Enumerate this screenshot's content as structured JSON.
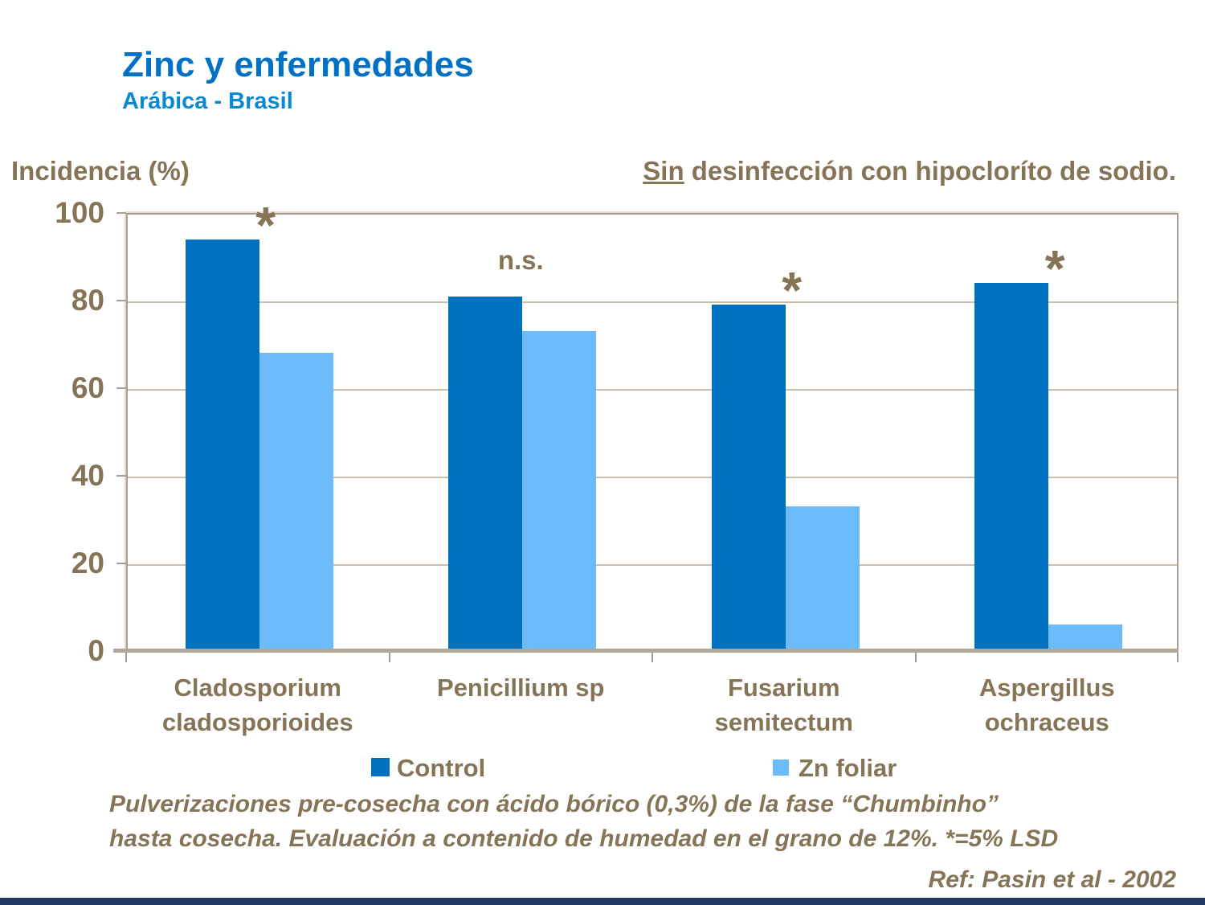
{
  "header": {
    "title": "Zinc y enfermedades",
    "subtitle": "Arábica - Brasil"
  },
  "axis": {
    "y_title": "Incidencia (%)"
  },
  "note": {
    "underlined": "Sin",
    "rest": " desinfección con hipocloríto de sodio."
  },
  "chart_data": {
    "type": "bar",
    "categories": [
      "Cladosporium cladosporioides",
      "Penicillium sp",
      "Fusarium semitectum",
      "Aspergillus ochraceus"
    ],
    "series": [
      {
        "name": "Control",
        "color": "#0070C0",
        "values": [
          94,
          81,
          79,
          84
        ]
      },
      {
        "name": "Zn foliar",
        "color": "#6CBCFC",
        "values": [
          68,
          73,
          33,
          6
        ]
      }
    ],
    "annotations": [
      "*",
      "n.s.",
      "*",
      "*"
    ],
    "title": "Zinc y enfermedades",
    "xlabel": "",
    "ylabel": "Incidencia (%)",
    "ylim": [
      0,
      100
    ],
    "yticks": [
      0,
      20,
      40,
      60,
      80,
      100
    ],
    "grid": true,
    "legend_position": "bottom"
  },
  "footer": {
    "line1": "Pulverizaciones pre-cosecha con ácido bórico (0,3%) de la fase “Chumbinho”",
    "line2": "hasta cosecha. Evaluación a contenido de humedad en el grano de 12%. *=5% LSD",
    "ref": "Ref: Pasin et al - 2002"
  },
  "colors": {
    "title_blue": "#0171C6",
    "subtitle_blue": "#0989D2",
    "text_brown": "#867457",
    "gridline": "#C9BFB1",
    "frame": "#A89E90",
    "bottom_strip_navy": "#1F3864"
  }
}
